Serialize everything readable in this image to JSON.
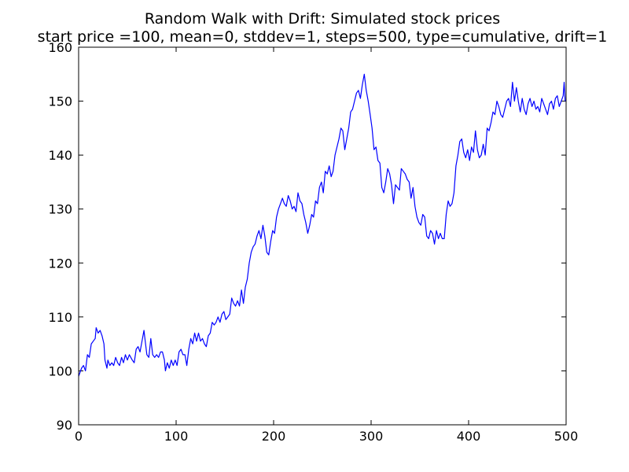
{
  "chart_data": {
    "type": "line",
    "title": "Random Walk with Drift: Simulated stock prices",
    "subtitle": "start price =100, mean=0, stddev=1, steps=500, type=cumulative, drift=1",
    "xlabel": "",
    "ylabel": "",
    "xlim": [
      0,
      500
    ],
    "ylim": [
      90,
      160
    ],
    "xticks": [
      0,
      100,
      200,
      300,
      400,
      500
    ],
    "yticks": [
      90,
      100,
      110,
      120,
      130,
      140,
      150,
      160
    ],
    "grid": false,
    "line_color": "#0000ff",
    "series": [
      {
        "points": [
          [
            0,
            99.0
          ],
          [
            3,
            100.5
          ],
          [
            5,
            101.0
          ],
          [
            7,
            100.0
          ],
          [
            9,
            103.0
          ],
          [
            11,
            102.5
          ],
          [
            13,
            105.0
          ],
          [
            15,
            105.5
          ],
          [
            17,
            106.0
          ],
          [
            18,
            108.0
          ],
          [
            20,
            107.0
          ],
          [
            22,
            107.5
          ],
          [
            24,
            106.5
          ],
          [
            26,
            105.0
          ],
          [
            27,
            102.0
          ],
          [
            29,
            100.5
          ],
          [
            30,
            102.0
          ],
          [
            32,
            101.0
          ],
          [
            34,
            101.5
          ],
          [
            36,
            101.0
          ],
          [
            38,
            102.5
          ],
          [
            40,
            101.5
          ],
          [
            42,
            101.0
          ],
          [
            44,
            102.5
          ],
          [
            46,
            101.5
          ],
          [
            48,
            103.0
          ],
          [
            50,
            102.0
          ],
          [
            52,
            103.0
          ],
          [
            55,
            102.0
          ],
          [
            57,
            101.5
          ],
          [
            59,
            104.0
          ],
          [
            61,
            104.5
          ],
          [
            63,
            103.5
          ],
          [
            65,
            105.5
          ],
          [
            67,
            107.5
          ],
          [
            68,
            106.0
          ],
          [
            70,
            103.0
          ],
          [
            72,
            102.5
          ],
          [
            74,
            106.0
          ],
          [
            76,
            103.0
          ],
          [
            78,
            102.5
          ],
          [
            80,
            103.0
          ],
          [
            82,
            102.5
          ],
          [
            84,
            103.5
          ],
          [
            86,
            103.5
          ],
          [
            88,
            102.0
          ],
          [
            89,
            100.0
          ],
          [
            91,
            101.5
          ],
          [
            93,
            100.5
          ],
          [
            95,
            102.0
          ],
          [
            97,
            101.0
          ],
          [
            99,
            102.0
          ],
          [
            101,
            101.0
          ],
          [
            103,
            103.5
          ],
          [
            105,
            104.0
          ],
          [
            107,
            103.0
          ],
          [
            109,
            103.0
          ],
          [
            111,
            101.0
          ],
          [
            113,
            104.0
          ],
          [
            115,
            106.0
          ],
          [
            117,
            105.0
          ],
          [
            119,
            107.0
          ],
          [
            121,
            105.5
          ],
          [
            123,
            107.0
          ],
          [
            125,
            105.5
          ],
          [
            127,
            106.0
          ],
          [
            129,
            105.0
          ],
          [
            131,
            104.5
          ],
          [
            133,
            106.5
          ],
          [
            135,
            107.0
          ],
          [
            137,
            109.0
          ],
          [
            139,
            108.5
          ],
          [
            141,
            109.0
          ],
          [
            143,
            110.0
          ],
          [
            145,
            109.0
          ],
          [
            147,
            110.5
          ],
          [
            149,
            111.0
          ],
          [
            151,
            109.5
          ],
          [
            153,
            110.0
          ],
          [
            155,
            110.5
          ],
          [
            157,
            113.5
          ],
          [
            159,
            112.5
          ],
          [
            161,
            112.0
          ],
          [
            163,
            113.0
          ],
          [
            165,
            112.0
          ],
          [
            167,
            115.0
          ],
          [
            169,
            112.5
          ],
          [
            171,
            115.5
          ],
          [
            173,
            117.0
          ],
          [
            175,
            120.0
          ],
          [
            177,
            122.0
          ],
          [
            179,
            123.0
          ],
          [
            181,
            123.5
          ],
          [
            183,
            125.0
          ],
          [
            185,
            126.0
          ],
          [
            187,
            124.5
          ],
          [
            189,
            127.0
          ],
          [
            191,
            125.0
          ],
          [
            193,
            122.0
          ],
          [
            195,
            121.5
          ],
          [
            197,
            124.0
          ],
          [
            199,
            126.0
          ],
          [
            201,
            125.5
          ],
          [
            203,
            128.5
          ],
          [
            205,
            130.0
          ],
          [
            207,
            131.0
          ],
          [
            209,
            132.0
          ],
          [
            211,
            131.0
          ],
          [
            213,
            130.5
          ],
          [
            215,
            132.5
          ],
          [
            217,
            131.5
          ],
          [
            219,
            130.0
          ],
          [
            221,
            130.5
          ],
          [
            223,
            129.5
          ],
          [
            225,
            133.0
          ],
          [
            227,
            131.5
          ],
          [
            229,
            131.0
          ],
          [
            231,
            129.0
          ],
          [
            233,
            127.5
          ],
          [
            235,
            125.5
          ],
          [
            237,
            127.0
          ],
          [
            239,
            129.0
          ],
          [
            241,
            128.5
          ],
          [
            243,
            131.5
          ],
          [
            245,
            131.0
          ],
          [
            247,
            134.0
          ],
          [
            249,
            135.0
          ],
          [
            251,
            133.0
          ],
          [
            253,
            137.0
          ],
          [
            255,
            136.5
          ],
          [
            257,
            138.0
          ],
          [
            259,
            136.0
          ],
          [
            261,
            137.0
          ],
          [
            263,
            140.0
          ],
          [
            265,
            141.5
          ],
          [
            267,
            143.0
          ],
          [
            269,
            145.0
          ],
          [
            271,
            144.5
          ],
          [
            273,
            141.0
          ],
          [
            275,
            143.0
          ],
          [
            277,
            145.0
          ],
          [
            279,
            148.0
          ],
          [
            281,
            148.5
          ],
          [
            283,
            150.0
          ],
          [
            285,
            151.5
          ],
          [
            287,
            152.0
          ],
          [
            289,
            150.5
          ],
          [
            291,
            153.0
          ],
          [
            293,
            155.0
          ],
          [
            295,
            152.0
          ],
          [
            297,
            150.0
          ],
          [
            299,
            147.5
          ],
          [
            301,
            145.0
          ],
          [
            303,
            141.0
          ],
          [
            305,
            141.5
          ],
          [
            307,
            139.0
          ],
          [
            309,
            138.5
          ],
          [
            311,
            134.0
          ],
          [
            313,
            133.0
          ],
          [
            315,
            135.0
          ],
          [
            317,
            137.5
          ],
          [
            319,
            136.5
          ],
          [
            321,
            134.5
          ],
          [
            323,
            131.0
          ],
          [
            325,
            134.5
          ],
          [
            327,
            134.0
          ],
          [
            329,
            133.5
          ],
          [
            331,
            137.5
          ],
          [
            333,
            137.0
          ],
          [
            335,
            136.5
          ],
          [
            337,
            135.5
          ],
          [
            339,
            135.0
          ],
          [
            341,
            132.0
          ],
          [
            343,
            134.0
          ],
          [
            345,
            130.5
          ],
          [
            347,
            128.5
          ],
          [
            349,
            127.5
          ],
          [
            351,
            127.0
          ],
          [
            353,
            129.0
          ],
          [
            355,
            128.5
          ],
          [
            357,
            125.0
          ],
          [
            359,
            124.5
          ],
          [
            361,
            126.0
          ],
          [
            363,
            125.5
          ],
          [
            365,
            123.5
          ],
          [
            367,
            126.0
          ],
          [
            369,
            124.5
          ],
          [
            371,
            125.5
          ],
          [
            373,
            124.5
          ],
          [
            375,
            124.5
          ],
          [
            377,
            129.0
          ],
          [
            379,
            131.5
          ],
          [
            381,
            130.5
          ],
          [
            383,
            131.0
          ],
          [
            385,
            133.0
          ],
          [
            387,
            138.0
          ],
          [
            389,
            140.0
          ],
          [
            391,
            142.5
          ],
          [
            393,
            143.0
          ],
          [
            395,
            140.5
          ],
          [
            397,
            139.5
          ],
          [
            399,
            141.0
          ],
          [
            401,
            139.0
          ],
          [
            403,
            141.5
          ],
          [
            405,
            140.5
          ],
          [
            407,
            144.5
          ],
          [
            409,
            141.0
          ],
          [
            411,
            139.5
          ],
          [
            413,
            140.0
          ],
          [
            415,
            142.0
          ],
          [
            417,
            140.0
          ],
          [
            419,
            145.0
          ],
          [
            421,
            144.5
          ],
          [
            423,
            146.0
          ],
          [
            425,
            148.0
          ],
          [
            427,
            147.5
          ],
          [
            429,
            150.0
          ],
          [
            431,
            149.0
          ],
          [
            433,
            147.5
          ],
          [
            435,
            147.0
          ],
          [
            437,
            148.5
          ],
          [
            439,
            150.0
          ],
          [
            441,
            150.5
          ],
          [
            443,
            149.0
          ],
          [
            445,
            153.5
          ],
          [
            447,
            150.0
          ],
          [
            449,
            152.5
          ],
          [
            451,
            150.0
          ],
          [
            453,
            148.0
          ],
          [
            455,
            150.5
          ],
          [
            457,
            148.5
          ],
          [
            459,
            147.5
          ],
          [
            461,
            149.5
          ],
          [
            463,
            150.5
          ],
          [
            465,
            149.0
          ],
          [
            467,
            150.0
          ],
          [
            469,
            148.5
          ],
          [
            471,
            149.0
          ],
          [
            473,
            148.0
          ],
          [
            475,
            150.5
          ],
          [
            477,
            149.5
          ],
          [
            479,
            148.5
          ],
          [
            481,
            147.5
          ],
          [
            483,
            149.5
          ],
          [
            485,
            150.0
          ],
          [
            487,
            148.5
          ],
          [
            489,
            150.5
          ],
          [
            491,
            151.0
          ],
          [
            493,
            149.0
          ],
          [
            495,
            150.0
          ],
          [
            497,
            151.0
          ],
          [
            498,
            153.5
          ],
          [
            499,
            150.0
          ]
        ]
      }
    ]
  }
}
